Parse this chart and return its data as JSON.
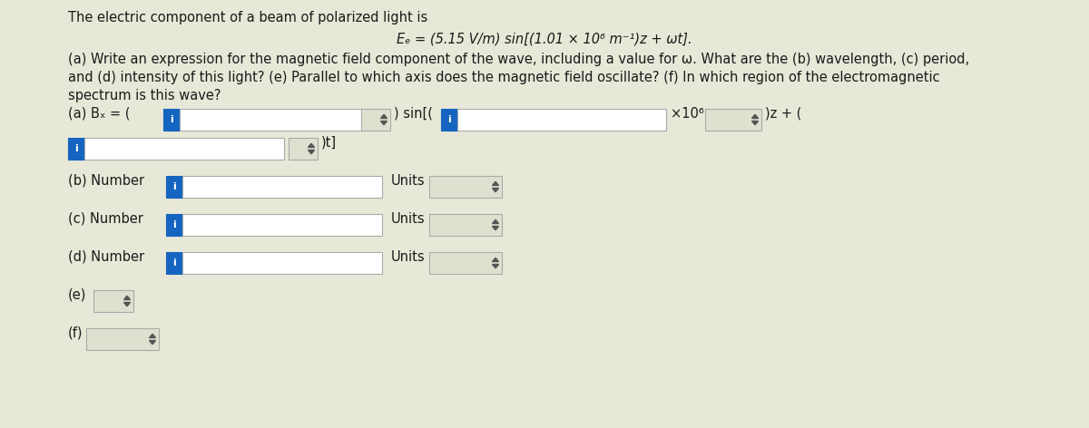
{
  "bg_color": "#e8e8d8",
  "white": "#ffffff",
  "blue_box_color": "#1565c0",
  "light_box_color": "#e0e0d0",
  "text_color": "#1a1a1a",
  "title_line1": "The electric component of a beam of polarized light is",
  "equation": "Eₑ = (5.15 V/m) sin[(1.01 × 10⁶ m⁻¹)z + ωt].",
  "body_text1": "(a) Write an expression for the magnetic field component of the wave, including a value for ω. What are the (b) wavelength, (c) period,",
  "body_text2": "and (d) intensity of this light? (e) Parallel to which axis does the magnetic field oscillate? (f) In which region of the electromagnetic",
  "body_text3": "spectrum is this wave?",
  "label_a": "(a) Bₓ = (",
  "label_b": "(b) Number",
  "label_c": "(c) Number",
  "label_d": "(d) Number",
  "label_e": "(e)",
  "label_f": "(f)",
  "sin_text": ") sin[(",
  "x106_text": "×10⁶",
  "jz_text": ")z + (",
  "jt_text": ")t]",
  "units_text": "Units",
  "figwidth": 12.0,
  "figheight": 4.72,
  "dpi": 100
}
